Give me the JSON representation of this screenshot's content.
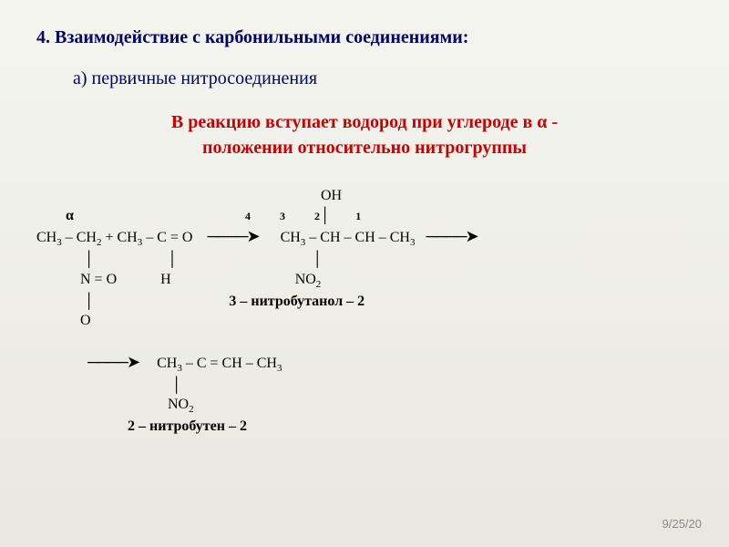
{
  "heading": "4. Взаимодействие с карбонильными соединениями:",
  "subheading": "а) первичные нитросоединения",
  "reaction_line1": "В реакцию вступает водород при углероде в α -",
  "reaction_line2": "положении относительно нитрогруппы",
  "colors": {
    "heading": "#000066",
    "reaction": "#cc0000",
    "chem": "#000000",
    "background_top": "#f5f5f0",
    "background_bottom": "#e8e8e0",
    "footer": "#888888"
  },
  "fonts": {
    "heading_size": 20,
    "reaction_size": 20,
    "chem_size": 16,
    "footer_size": 13
  },
  "chem": {
    "alpha": "α",
    "oh_label": "OH",
    "prod_nums": {
      "n4": "4",
      "n3": "3",
      "n2": "2",
      "n1": "1"
    },
    "vert_bar": "│",
    "reactant_main": "CH₃ – CH₂ + CH₃ – C = O",
    "arrow1": "────➤",
    "product1_main": "CH₃ – CH – CH – CH₃",
    "arrow2": "────➤",
    "reactant_line2_spacer": "             │                    │",
    "reactant_line3": "            N = O            H",
    "product1_line2": "                        │",
    "product1_line3": "                      NO₂",
    "compound1_name": "3 – нитробутанол – 2",
    "reactant_line4": "             │",
    "reactant_line5": "            O",
    "arrow3": "────➤",
    "product2_main": "CH₃ – C = CH – CH₃",
    "product2_line2": "            │",
    "product2_line3": "           NO₂",
    "compound2_name": "2 – нитробутен – 2"
  },
  "footer_date": "9/25/20"
}
